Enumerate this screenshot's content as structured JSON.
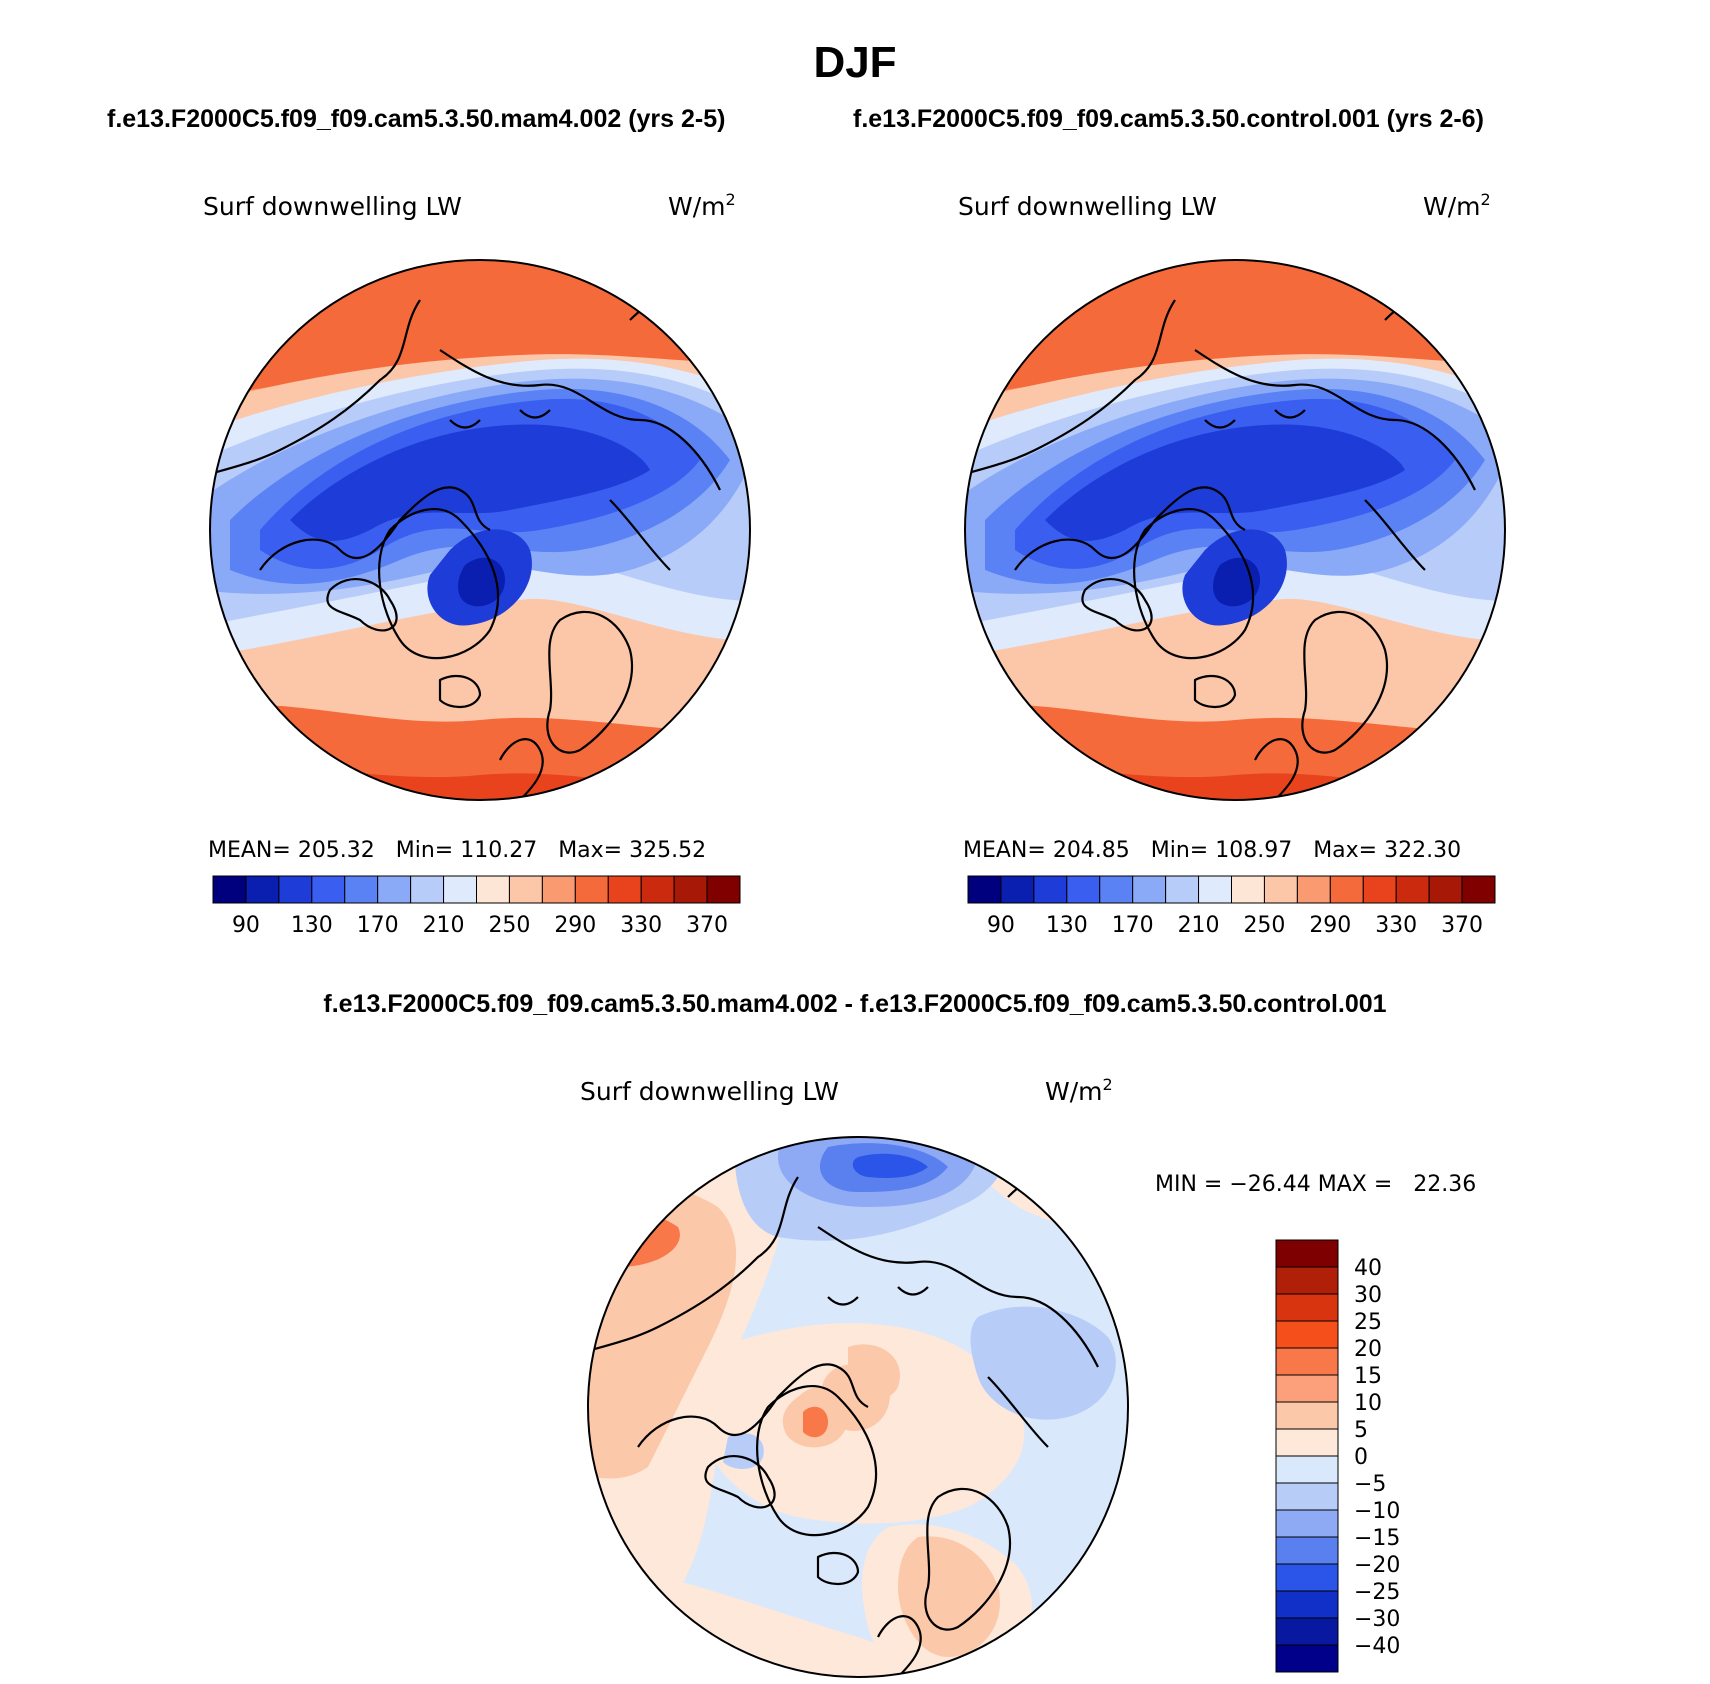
{
  "title": "DJF",
  "subtitle_left": "f.e13.F2000C5.f09_f09.cam5.3.50.mam4.002 (yrs 2-5)",
  "subtitle_right": "f.e13.F2000C5.f09_f09.cam5.3.50.control.001 (yrs 2-6)",
  "diff_title": "f.e13.F2000C5.f09_f09.cam5.3.50.mam4.002 - f.e13.F2000C5.f09_f09.cam5.3.50.control.001",
  "panels": [
    {
      "variable": "Surf downwelling LW",
      "units": "W/m",
      "units_sup": "2",
      "stats": "MEAN= 205.32   Min= 110.27   Max= 325.52",
      "mean": 205.32,
      "min": 110.27,
      "max": 325.52
    },
    {
      "variable": "Surf downwelling LW",
      "units": "W/m",
      "units_sup": "2",
      "stats": "MEAN= 204.85   Min= 108.97   Max= 322.30",
      "mean": 204.85,
      "min": 108.97,
      "max": 322.3
    },
    {
      "variable": "Surf downwelling LW",
      "units": "W/m",
      "units_sup": "2",
      "stats": "MIN = −26.44 MAX =   22.36",
      "min": -26.44,
      "max": 22.36
    }
  ],
  "colorbar_abs": {
    "labels": [
      "90",
      "130",
      "170",
      "210",
      "250",
      "290",
      "330",
      "370"
    ],
    "colors": [
      "#00007f",
      "#0a1eb0",
      "#1e3cd8",
      "#3a5ef0",
      "#5a82f5",
      "#8aaaf8",
      "#b8ccfa",
      "#dfeafd",
      "#fde6d6",
      "#fcc6a8",
      "#fa9a70",
      "#f56a3a",
      "#e8431c",
      "#cc2a0e",
      "#a81806",
      "#800000"
    ]
  },
  "colorbar_diff": {
    "labels": [
      "40",
      "30",
      "25",
      "20",
      "15",
      "10",
      "5",
      "0",
      "−5",
      "−10",
      "−15",
      "−20",
      "−25",
      "−30",
      "−40"
    ],
    "colors": [
      "#7f0000",
      "#b02008",
      "#d83410",
      "#f5501c",
      "#f8784a",
      "#fba07a",
      "#fcc8aa",
      "#fde8da",
      "#dae8fc",
      "#b8ccf8",
      "#8eaaf5",
      "#5a80f0",
      "#2a55e8",
      "#1030c8",
      "#0818a0",
      "#00008a"
    ]
  }
}
